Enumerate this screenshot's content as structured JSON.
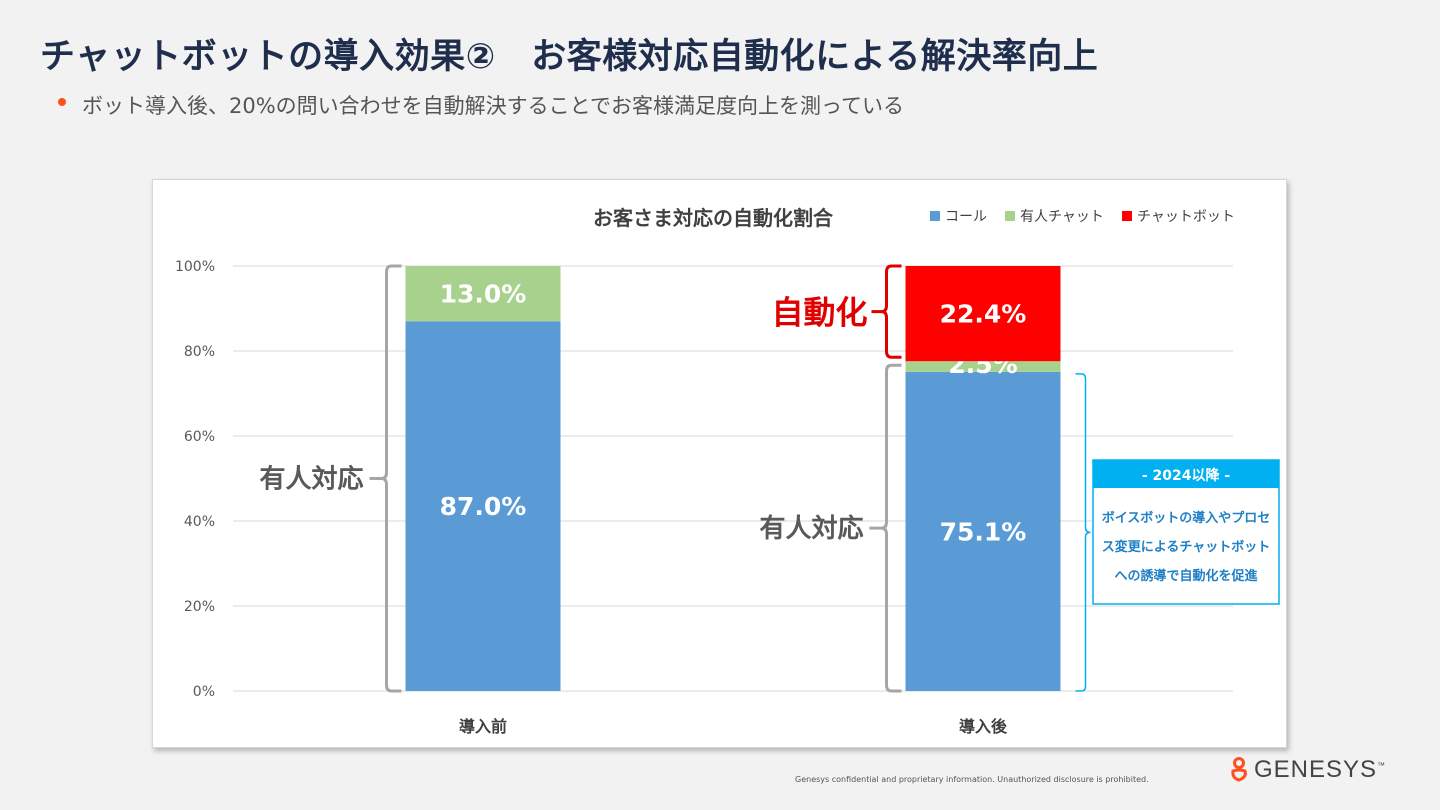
{
  "page": {
    "title": "チャットボットの導入効果②　お客様対応自動化による解決率向上",
    "bullet": "ボット導入後、20%の問い合わせを自動解決することでお客様満足度向上を測っている",
    "footer_note": "Genesys confidential and proprietary information. Unauthorized disclosure is prohibited.",
    "logo_text": "GENESYS",
    "logo_mark": "™"
  },
  "colors": {
    "call": "#5b9bd5",
    "human_chat": "#a9d18e",
    "chatbot": "#ff0000",
    "grid": "#d9d9d9",
    "bracket_gray": "#a6a6a6",
    "bracket_red": "#e00000",
    "bracket_cyan": "#00b0f0",
    "callout_header": "#00b0f0"
  },
  "chart_data": {
    "type": "bar",
    "stacked": true,
    "title": "お客さま対応の自動化割合",
    "categories": [
      "導入前",
      "導入後"
    ],
    "series": [
      {
        "name": "コール",
        "values": [
          87.0,
          75.1
        ],
        "labels": [
          "87.0%",
          "75.1%"
        ]
      },
      {
        "name": "有人チャット",
        "values": [
          13.0,
          2.5
        ],
        "labels": [
          "13.0%",
          "2.5%"
        ]
      },
      {
        "name": "チャットボット",
        "values": [
          0,
          22.4
        ],
        "labels": [
          "",
          "22.4%"
        ]
      }
    ],
    "ylim": [
      0,
      100
    ],
    "yticks": [
      "0%",
      "20%",
      "40%",
      "60%",
      "80%",
      "100%"
    ],
    "legend_position": "top-right",
    "annotations": {
      "human_before": "有人対応",
      "human_after": "有人対応",
      "automation": "自動化",
      "callout_title": "- 2024以降 -",
      "callout_lines": [
        "ボイスボットの導入やプロセ",
        "ス変更によるチャットボット",
        "への誘導で自動化を促進"
      ]
    }
  }
}
